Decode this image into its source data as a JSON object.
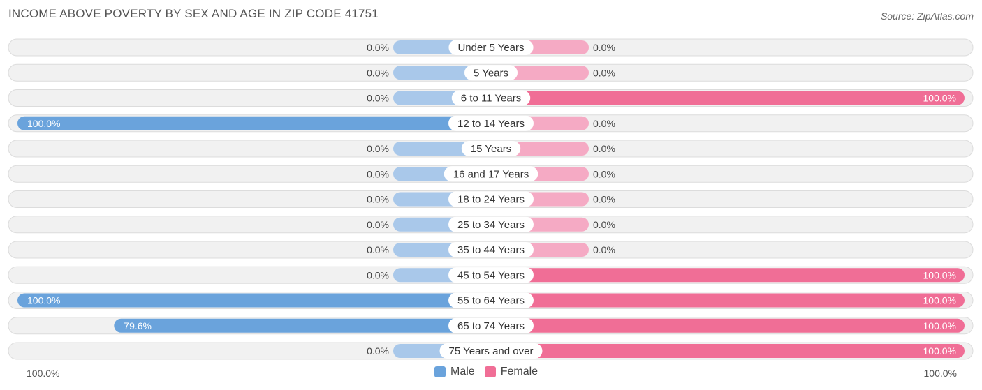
{
  "header": {
    "title": "INCOME ABOVE POVERTY BY SEX AND AGE IN ZIP CODE 41751",
    "source": "Source: ZipAtlas.com"
  },
  "axis": {
    "left_label": "100.0%",
    "right_label": "100.0%"
  },
  "legend": {
    "male": "Male",
    "female": "Female"
  },
  "colors": {
    "male_strong": "#6aa3dc",
    "male_light": "#a9c8ea",
    "female_strong": "#f06e96",
    "female_light": "#f5aac4"
  },
  "chart_data": {
    "type": "bar",
    "title": "INCOME ABOVE POVERTY BY SEX AND AGE IN ZIP CODE 41751",
    "categories": [
      "Under 5 Years",
      "5 Years",
      "6 to 11 Years",
      "12 to 14 Years",
      "15 Years",
      "16 and 17 Years",
      "18 to 24 Years",
      "25 to 34 Years",
      "35 to 44 Years",
      "45 to 54 Years",
      "55 to 64 Years",
      "65 to 74 Years",
      "75 Years and over"
    ],
    "series": [
      {
        "name": "Male",
        "values": [
          0,
          0,
          0,
          100,
          0,
          0,
          0,
          0,
          0,
          0,
          100,
          79.6,
          0
        ],
        "labels": [
          "0.0%",
          "0.0%",
          "0.0%",
          "100.0%",
          "0.0%",
          "0.0%",
          "0.0%",
          "0.0%",
          "0.0%",
          "0.0%",
          "100.0%",
          "79.6%",
          "0.0%"
        ]
      },
      {
        "name": "Female",
        "values": [
          0,
          0,
          100,
          0,
          0,
          0,
          0,
          0,
          0,
          100,
          100,
          100,
          100
        ],
        "labels": [
          "0.0%",
          "0.0%",
          "100.0%",
          "0.0%",
          "0.0%",
          "0.0%",
          "0.0%",
          "0.0%",
          "0.0%",
          "100.0%",
          "100.0%",
          "100.0%",
          "100.0%"
        ]
      }
    ],
    "xlim": [
      -100,
      100
    ],
    "legend_position": "bottom-center"
  }
}
